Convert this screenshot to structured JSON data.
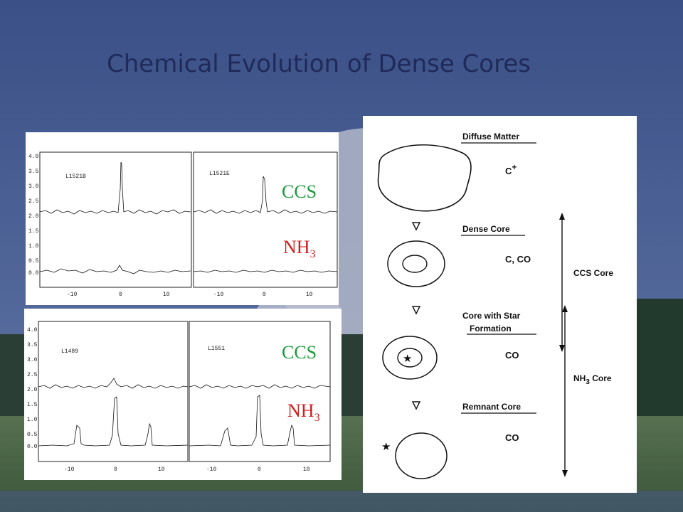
{
  "slide": {
    "title": "Chemical Evolution of Dense Cores"
  },
  "spectra": {
    "top": {
      "left_source": "L1521B",
      "right_source": "L1521E",
      "ccs_label": "CCS",
      "nh3_label_main": "NH",
      "nh3_label_sub": "3",
      "y_ticks": [
        "4.0",
        "3.5",
        "3.0",
        "2.5",
        "2.0",
        "1.5",
        "1.0",
        "0.5",
        "0.0"
      ],
      "x_ticks": [
        "-10",
        "0",
        "10"
      ]
    },
    "bottom": {
      "left_source": "L1489",
      "right_source": "L1551",
      "ccs_label": "CCS",
      "nh3_label_main": "NH",
      "nh3_label_sub": "3",
      "y_ticks": [
        "4.0",
        "3.5",
        "3.0",
        "2.5",
        "2.0",
        "1.5",
        "1.0",
        "0.5",
        "0.0"
      ],
      "x_ticks": [
        "-10",
        "0",
        "10"
      ]
    }
  },
  "diagram": {
    "stages": [
      {
        "label": "Diffuse Matter",
        "chem": "C",
        "chem_sup": "+"
      },
      {
        "label": "Dense Core",
        "chem": "C, CO"
      },
      {
        "label_line1": "Core with Star",
        "label_line2": "Formation",
        "chem": "CO"
      },
      {
        "label": "Remnant Core",
        "chem": "CO"
      }
    ],
    "ccs_core_label": "CCS Core",
    "nh3_core_label_a": "NH",
    "nh3_core_label_sub": "3",
    "nh3_core_label_b": " Core"
  }
}
